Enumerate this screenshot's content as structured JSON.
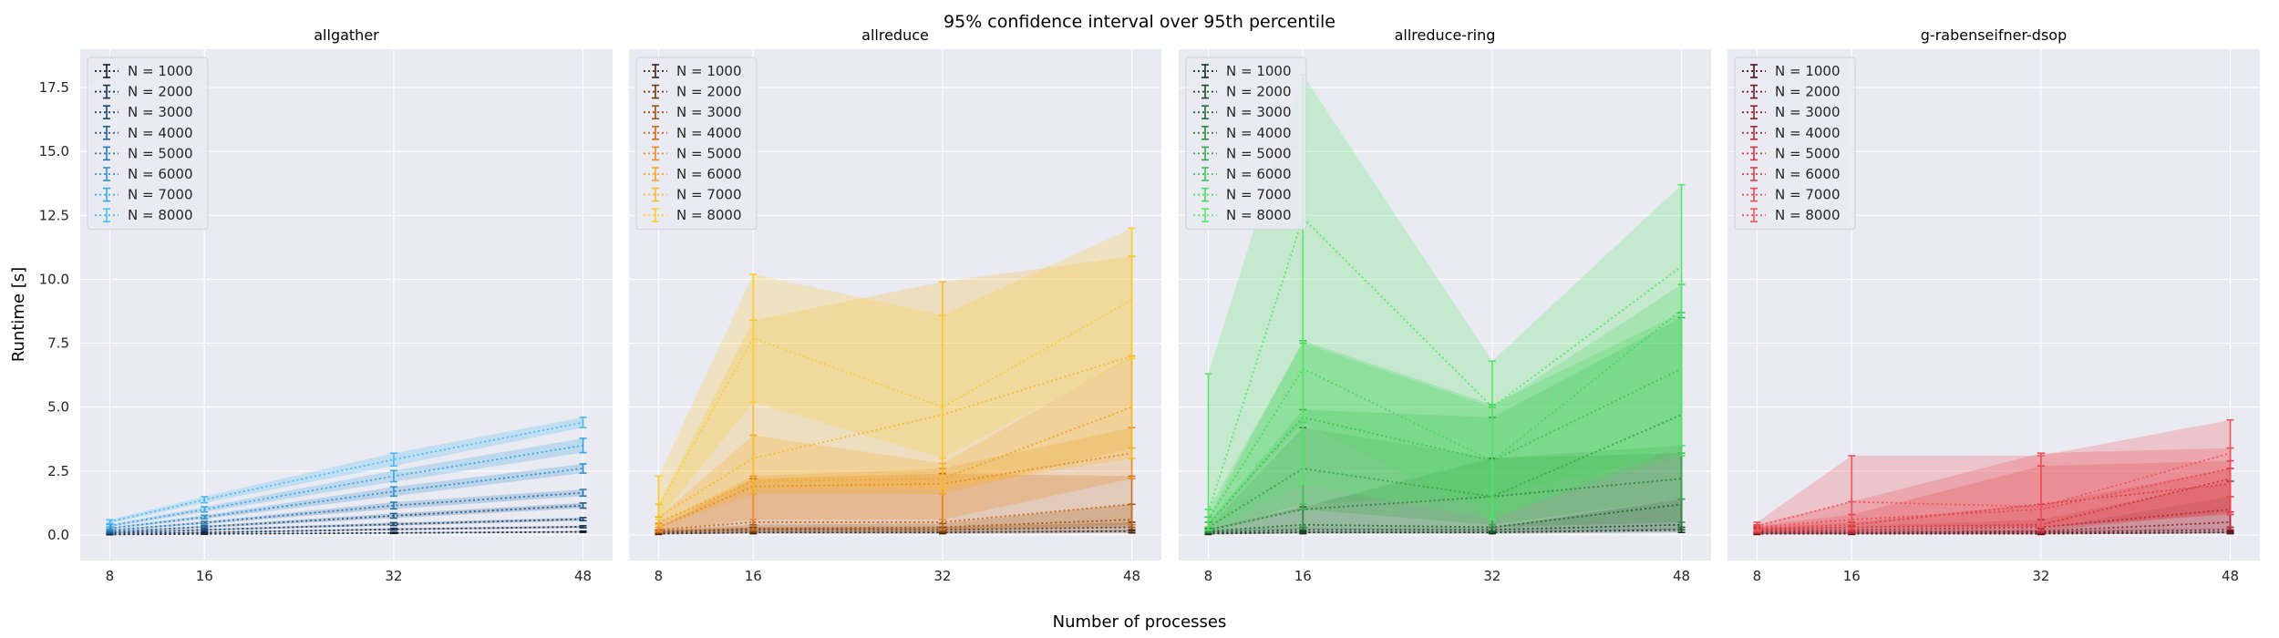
{
  "chart_data": {
    "type": "line",
    "title": "95% confidence interval over 95th percentile",
    "xlabel": "Number of processes",
    "ylabel": "Runtime [s]",
    "x": [
      8,
      16,
      32,
      48
    ],
    "xlim": [
      5.5,
      50.5
    ],
    "ylim": [
      -1.0,
      19.0
    ],
    "xticks": [
      8,
      16,
      32,
      48
    ],
    "yticks": [
      0.0,
      2.5,
      5.0,
      7.5,
      10.0,
      12.5,
      15.0,
      17.5
    ],
    "ytick_labels": [
      "0.0",
      "2.5",
      "5.0",
      "7.5",
      "10.0",
      "12.5",
      "15.0",
      "17.5"
    ],
    "grid": true,
    "legend_position": "upper-left",
    "style": {
      "background": "#eaeaf2",
      "grid_color": "#ffffff"
    },
    "panels": [
      {
        "title": "allgather",
        "colors": [
          "#0b1f33",
          "#12304f",
          "#1a466f",
          "#215e91",
          "#2a79b4",
          "#3191cf",
          "#3ba7e4",
          "#47bdf2"
        ],
        "series": [
          {
            "name": "N = 1000",
            "values": [
              0.02,
              0.04,
              0.08,
              0.12
            ],
            "lower": [
              0.01,
              0.03,
              0.06,
              0.1
            ],
            "upper": [
              0.03,
              0.05,
              0.1,
              0.15
            ]
          },
          {
            "name": "N = 2000",
            "values": [
              0.04,
              0.1,
              0.22,
              0.32
            ],
            "lower": [
              0.03,
              0.08,
              0.19,
              0.28
            ],
            "upper": [
              0.05,
              0.12,
              0.26,
              0.36
            ]
          },
          {
            "name": "N = 3000",
            "values": [
              0.08,
              0.2,
              0.42,
              0.62
            ],
            "lower": [
              0.06,
              0.17,
              0.37,
              0.56
            ],
            "upper": [
              0.1,
              0.23,
              0.48,
              0.68
            ]
          },
          {
            "name": "N = 4000",
            "values": [
              0.12,
              0.32,
              0.75,
              1.15
            ],
            "lower": [
              0.1,
              0.28,
              0.66,
              1.05
            ],
            "upper": [
              0.14,
              0.36,
              0.84,
              1.25
            ]
          },
          {
            "name": "N = 5000",
            "values": [
              0.18,
              0.48,
              1.15,
              1.65
            ],
            "lower": [
              0.15,
              0.43,
              1.02,
              1.52
            ],
            "upper": [
              0.21,
              0.53,
              1.28,
              1.78
            ]
          },
          {
            "name": "N = 6000",
            "values": [
              0.26,
              0.7,
              1.7,
              2.6
            ],
            "lower": [
              0.22,
              0.63,
              1.52,
              2.42
            ],
            "upper": [
              0.3,
              0.77,
              1.88,
              2.78
            ]
          },
          {
            "name": "N = 7000",
            "values": [
              0.36,
              1.0,
              2.3,
              3.5
            ],
            "lower": [
              0.31,
              0.9,
              2.08,
              3.22
            ],
            "upper": [
              0.41,
              1.1,
              2.52,
              3.78
            ]
          },
          {
            "name": "N = 8000",
            "values": [
              0.52,
              1.38,
              2.95,
              4.4
            ],
            "lower": [
              0.45,
              1.26,
              2.7,
              4.2
            ],
            "upper": [
              0.59,
              1.5,
              3.2,
              4.6
            ]
          }
        ]
      },
      {
        "title": "allreduce",
        "colors": [
          "#3d2410",
          "#6b3a12",
          "#9e5414",
          "#cc6b14",
          "#ee8a20",
          "#f5a623",
          "#f8bb2a",
          "#fbcd33"
        ],
        "series": [
          {
            "name": "N = 1000",
            "values": [
              0.05,
              0.1,
              0.1,
              0.15
            ],
            "lower": [
              0.02,
              0.05,
              0.05,
              0.08
            ],
            "upper": [
              0.08,
              0.15,
              0.15,
              0.2
            ]
          },
          {
            "name": "N = 2000",
            "values": [
              0.1,
              0.2,
              0.2,
              0.3
            ],
            "lower": [
              0.05,
              0.1,
              0.1,
              0.15
            ],
            "upper": [
              0.15,
              0.3,
              0.3,
              0.5
            ]
          },
          {
            "name": "N = 3000",
            "values": [
              0.15,
              0.25,
              0.3,
              0.6
            ],
            "lower": [
              0.1,
              0.15,
              0.15,
              0.3
            ],
            "upper": [
              0.2,
              0.4,
              0.45,
              1.2
            ]
          },
          {
            "name": "N = 4000",
            "values": [
              0.2,
              0.5,
              0.5,
              1.2
            ],
            "lower": [
              0.1,
              0.2,
              0.2,
              0.4
            ],
            "upper": [
              0.3,
              2.2,
              2.4,
              2.3
            ]
          },
          {
            "name": "N = 5000",
            "values": [
              0.3,
              1.9,
              2.0,
              3.2
            ],
            "lower": [
              0.15,
              0.6,
              0.6,
              2.2
            ],
            "upper": [
              0.45,
              2.3,
              2.6,
              4.2
            ]
          },
          {
            "name": "N = 6000",
            "values": [
              0.5,
              2.1,
              2.2,
              5.0
            ],
            "lower": [
              0.3,
              1.6,
              1.6,
              3.4
            ],
            "upper": [
              0.7,
              3.9,
              2.8,
              7.0
            ]
          },
          {
            "name": "N = 7000",
            "values": [
              0.7,
              3.0,
              4.7,
              7.0
            ],
            "lower": [
              0.4,
              1.8,
              1.8,
              3.0
            ],
            "upper": [
              1.2,
              8.4,
              9.9,
              10.9
            ]
          },
          {
            "name": "N = 8000",
            "values": [
              1.1,
              7.7,
              5.0,
              9.2
            ],
            "lower": [
              0.6,
              5.2,
              3.0,
              6.9
            ],
            "upper": [
              2.3,
              10.2,
              8.6,
              12.0
            ]
          }
        ]
      },
      {
        "title": "allreduce-ring",
        "colors": [
          "#10321a",
          "#1a4d24",
          "#246b30",
          "#2e8a3c",
          "#38a848",
          "#42c454",
          "#4ad85e",
          "#55e868"
        ],
        "series": [
          {
            "name": "N = 1000",
            "values": [
              0.05,
              0.1,
              0.1,
              0.2
            ],
            "lower": [
              0.02,
              0.05,
              0.05,
              0.1
            ],
            "upper": [
              0.08,
              0.15,
              0.15,
              0.3
            ]
          },
          {
            "name": "N = 2000",
            "values": [
              0.1,
              0.2,
              0.2,
              0.4
            ],
            "lower": [
              0.05,
              0.1,
              0.1,
              0.2
            ],
            "upper": [
              0.15,
              0.3,
              0.3,
              1.4
            ]
          },
          {
            "name": "N = 3000",
            "values": [
              0.15,
              0.4,
              0.3,
              1.2
            ],
            "lower": [
              0.1,
              0.2,
              0.15,
              0.3
            ],
            "upper": [
              0.25,
              1.1,
              3.0,
              3.2
            ]
          },
          {
            "name": "N = 4000",
            "values": [
              0.2,
              1.0,
              1.5,
              2.2
            ],
            "lower": [
              0.1,
              0.3,
              0.3,
              0.5
            ],
            "upper": [
              0.3,
              4.2,
              3.0,
              3.5
            ]
          },
          {
            "name": "N = 5000",
            "values": [
              0.3,
              2.6,
              1.5,
              4.7
            ],
            "lower": [
              0.15,
              1.0,
              0.4,
              1.4
            ],
            "upper": [
              0.5,
              4.9,
              4.6,
              8.5
            ]
          },
          {
            "name": "N = 6000",
            "values": [
              0.4,
              4.6,
              2.9,
              6.5
            ],
            "lower": [
              0.2,
              1.2,
              1.5,
              3.2
            ],
            "upper": [
              0.7,
              7.6,
              5.1,
              8.7
            ]
          },
          {
            "name": "N = 7000",
            "values": [
              0.6,
              6.5,
              2.9,
              8.8
            ],
            "lower": [
              0.3,
              4.4,
              0.7,
              3.1
            ],
            "upper": [
              1.0,
              7.5,
              5.0,
              9.8
            ]
          },
          {
            "name": "N = 8000",
            "values": [
              0.9,
              12.4,
              5.0,
              10.5
            ],
            "lower": [
              0.2,
              2.0,
              0.6,
              3.5
            ],
            "upper": [
              6.3,
              18.0,
              6.8,
              13.7
            ]
          }
        ]
      },
      {
        "title": "g-rabenseifner-dsop",
        "colors": [
          "#4a0f14",
          "#701820",
          "#95212c",
          "#b52a36",
          "#d0333f",
          "#e03e48",
          "#ea4a52",
          "#f0555c"
        ],
        "series": [
          {
            "name": "N = 1000",
            "values": [
              0.05,
              0.05,
              0.05,
              0.1
            ],
            "lower": [
              0.02,
              0.02,
              0.02,
              0.05
            ],
            "upper": [
              0.08,
              0.08,
              0.08,
              0.15
            ]
          },
          {
            "name": "N = 2000",
            "values": [
              0.08,
              0.08,
              0.1,
              0.2
            ],
            "lower": [
              0.04,
              0.04,
              0.05,
              0.1
            ],
            "upper": [
              0.12,
              0.12,
              0.15,
              0.3
            ]
          },
          {
            "name": "N = 3000",
            "values": [
              0.1,
              0.12,
              0.15,
              0.5
            ],
            "lower": [
              0.05,
              0.06,
              0.08,
              0.2
            ],
            "upper": [
              0.15,
              0.2,
              0.25,
              1.5
            ]
          },
          {
            "name": "N = 4000",
            "values": [
              0.15,
              0.2,
              0.3,
              1.0
            ],
            "lower": [
              0.08,
              0.1,
              0.1,
              0.3
            ],
            "upper": [
              0.25,
              0.35,
              0.6,
              2.1
            ]
          },
          {
            "name": "N = 5000",
            "values": [
              0.2,
              0.3,
              0.4,
              2.2
            ],
            "lower": [
              0.1,
              0.15,
              0.15,
              0.9
            ],
            "upper": [
              0.3,
              0.5,
              1.2,
              2.6
            ]
          },
          {
            "name": "N = 6000",
            "values": [
              0.25,
              0.4,
              1.2,
              2.0
            ],
            "lower": [
              0.12,
              0.2,
              0.3,
              0.8
            ],
            "upper": [
              0.35,
              0.8,
              2.7,
              2.9
            ]
          },
          {
            "name": "N = 7000",
            "values": [
              0.3,
              0.6,
              1.0,
              2.6
            ],
            "lower": [
              0.15,
              0.3,
              0.3,
              0.8
            ],
            "upper": [
              0.4,
              1.3,
              3.2,
              3.4
            ]
          },
          {
            "name": "N = 8000",
            "values": [
              0.35,
              1.3,
              1.1,
              3.2
            ],
            "lower": [
              0.2,
              0.4,
              0.3,
              1.5
            ],
            "upper": [
              0.5,
              3.1,
              3.1,
              4.5
            ]
          }
        ]
      }
    ]
  }
}
